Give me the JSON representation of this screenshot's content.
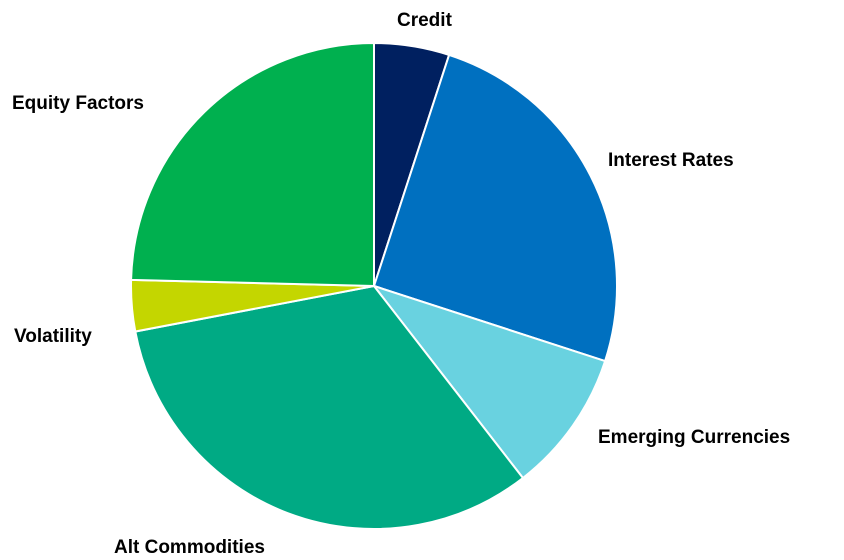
{
  "chart_data": {
    "type": "pie",
    "title": "",
    "categories": [
      "Credit",
      "Interest Rates",
      "Emerging Currencies",
      "Alt Commodities",
      "Volatility",
      "Equity Factors"
    ],
    "values": [
      5.0,
      25.0,
      9.5,
      32.5,
      3.4,
      24.6
    ],
    "unit": "percent",
    "colors": [
      "#002060",
      "#0070C0",
      "#69D2E0",
      "#00AA84",
      "#C4D600",
      "#00B04F"
    ],
    "start_angle_deg": 0,
    "direction": "clockwise"
  }
}
